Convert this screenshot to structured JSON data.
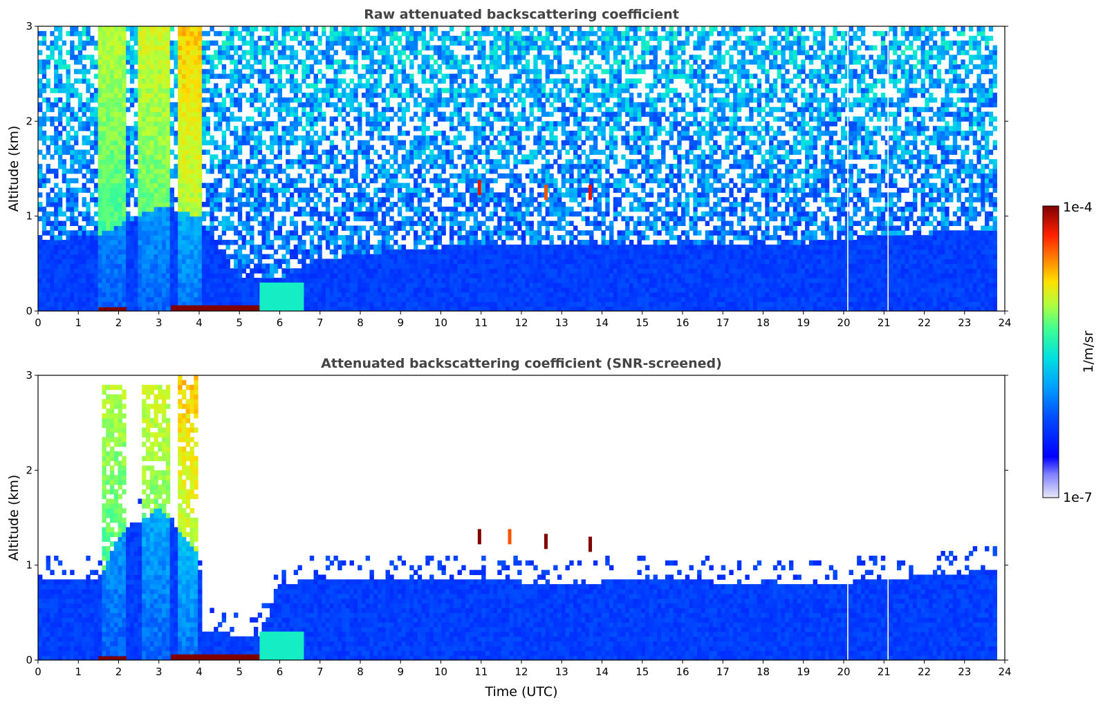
{
  "chart_data": [
    {
      "type": "heatmap",
      "title": "Raw attenuated backscattering coefficient",
      "xlabel": "",
      "ylabel": "Altitude (km)",
      "xlim": [
        0,
        24
      ],
      "ylim": [
        0,
        3
      ],
      "xticks": [
        "0",
        "1",
        "2",
        "3",
        "4",
        "5",
        "6",
        "7",
        "8",
        "9",
        "10",
        "11",
        "12",
        "13",
        "14",
        "15",
        "16",
        "17",
        "18",
        "19",
        "20",
        "21",
        "22",
        "23",
        "24"
      ],
      "yticks": [
        "0",
        "1",
        "2",
        "3"
      ],
      "data_extent_x": [
        0,
        23.8
      ],
      "boundary_layer_top_km": [
        [
          0,
          0.75
        ],
        [
          1.5,
          0.8
        ],
        [
          2,
          0.9
        ],
        [
          3,
          1.1
        ],
        [
          4,
          1.0
        ],
        [
          5,
          0.35
        ],
        [
          6,
          0.35
        ],
        [
          7,
          0.55
        ],
        [
          9,
          0.65
        ],
        [
          11,
          0.7
        ],
        [
          13,
          0.72
        ],
        [
          15,
          0.72
        ],
        [
          17,
          0.7
        ],
        [
          19,
          0.72
        ],
        [
          21,
          0.8
        ],
        [
          23.8,
          0.85
        ]
      ],
      "aerosol_columns": [
        {
          "x_start": 1.5,
          "x_end": 2.2,
          "top_km": 3.0,
          "strength": 0.4
        },
        {
          "x_start": 2.5,
          "x_end": 3.3,
          "top_km": 3.0,
          "strength": 0.45
        },
        {
          "x_start": 3.5,
          "x_end": 4.05,
          "top_km": 3.0,
          "strength": 0.6
        }
      ],
      "surface_layer": [
        {
          "x_start": 1.5,
          "x_end": 2.2,
          "height_km": 0.04,
          "level": 1.0
        },
        {
          "x_start": 3.3,
          "x_end": 5.5,
          "height_km": 0.06,
          "level": 1.0
        },
        {
          "x_start": 5.5,
          "x_end": 6.6,
          "height_km": 0.3,
          "level": 0.55
        }
      ],
      "cloud_spots": [
        {
          "x": 10.95,
          "alt_km": 1.3,
          "level": 0.95
        },
        {
          "x": 12.6,
          "alt_km": 1.25,
          "level": 0.9
        },
        {
          "x": 13.7,
          "alt_km": 1.25,
          "level": 0.95
        }
      ],
      "gaps_x": [
        20.1,
        21.1
      ]
    },
    {
      "type": "heatmap",
      "title": "Attenuated backscattering coefficient (SNR-screened)",
      "xlabel": "Time (UTC)",
      "ylabel": "Altitude (km)",
      "xlim": [
        0,
        24
      ],
      "ylim": [
        0,
        3
      ],
      "xticks": [
        "0",
        "1",
        "2",
        "3",
        "4",
        "5",
        "6",
        "7",
        "8",
        "9",
        "10",
        "11",
        "12",
        "13",
        "14",
        "15",
        "16",
        "17",
        "18",
        "19",
        "20",
        "21",
        "22",
        "23",
        "24"
      ],
      "yticks": [
        "0",
        "1",
        "2",
        "3"
      ],
      "data_extent_x": [
        0,
        23.8
      ],
      "boundary_layer_top_km": [
        [
          0,
          0.85
        ],
        [
          1.5,
          0.85
        ],
        [
          2,
          1.3
        ],
        [
          3,
          1.6
        ],
        [
          4,
          1.1
        ],
        [
          4.1,
          0.3
        ],
        [
          5.5,
          0.25
        ],
        [
          6,
          0.8
        ],
        [
          7,
          0.85
        ],
        [
          9,
          0.85
        ],
        [
          11,
          0.85
        ],
        [
          13,
          0.8
        ],
        [
          15,
          0.85
        ],
        [
          17,
          0.82
        ],
        [
          19,
          0.78
        ],
        [
          21,
          0.85
        ],
        [
          23.8,
          0.95
        ]
      ],
      "aerosol_columns": [
        {
          "x_start": 1.6,
          "x_end": 2.2,
          "top_km": 2.9,
          "strength": 0.4
        },
        {
          "x_start": 2.6,
          "x_end": 3.3,
          "top_km": 2.9,
          "strength": 0.45
        },
        {
          "x_start": 3.45,
          "x_end": 4.0,
          "top_km": 3.0,
          "strength": 0.6
        }
      ],
      "surface_layer": [
        {
          "x_start": 1.5,
          "x_end": 2.2,
          "height_km": 0.04,
          "level": 1.0
        },
        {
          "x_start": 3.3,
          "x_end": 5.5,
          "height_km": 0.06,
          "level": 1.0
        },
        {
          "x_start": 5.5,
          "x_end": 6.6,
          "height_km": 0.3,
          "level": 0.55
        }
      ],
      "cloud_spots": [
        {
          "x": 10.95,
          "alt_km": 1.3,
          "level": 1.0
        },
        {
          "x": 11.7,
          "alt_km": 1.3,
          "level": 0.9
        },
        {
          "x": 12.6,
          "alt_km": 1.25,
          "level": 1.0
        },
        {
          "x": 13.7,
          "alt_km": 1.22,
          "level": 1.0
        }
      ],
      "gaps_x": [
        20.1,
        21.1
      ]
    }
  ],
  "colorbar": {
    "label": "1/m/sr",
    "max_label": "1e-4",
    "min_label": "1e-7",
    "scale": "log",
    "colormap": "jet"
  }
}
